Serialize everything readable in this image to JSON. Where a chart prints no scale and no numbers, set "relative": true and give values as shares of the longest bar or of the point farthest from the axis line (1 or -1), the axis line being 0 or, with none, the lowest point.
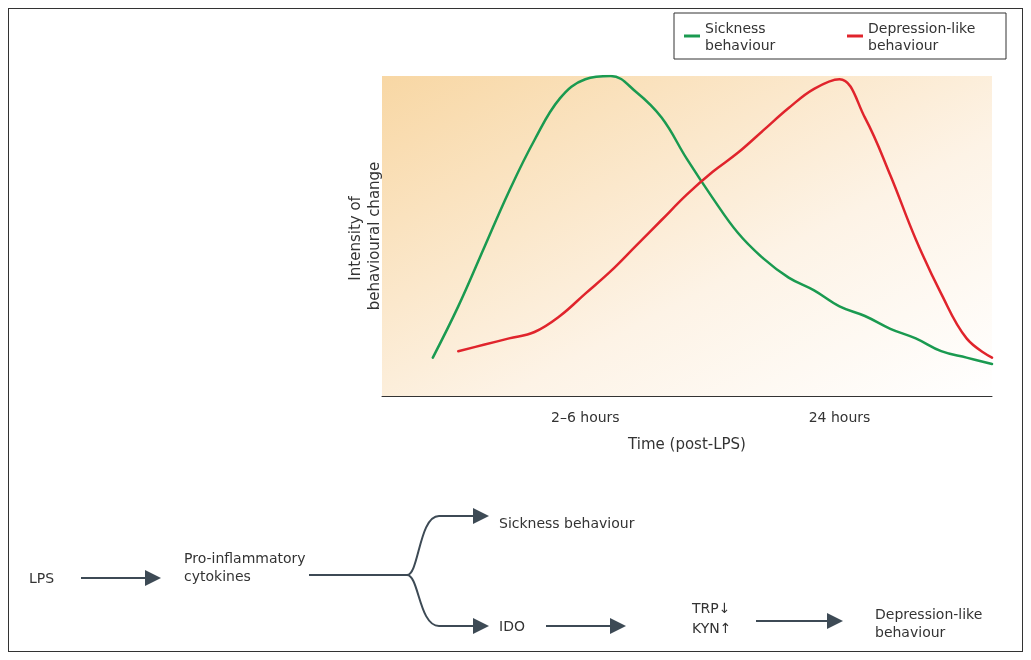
{
  "chart_data": {
    "type": "line",
    "relative": true,
    "ylabel": "Intensity of behavioural change",
    "xlabel": "Time (post-LPS)",
    "categories": [
      null,
      null,
      null,
      null,
      null,
      null,
      null,
      null,
      "2–6 hours",
      null,
      null,
      null,
      null,
      null,
      null,
      null,
      null,
      null,
      "24 hours",
      null,
      null,
      null,
      null,
      null,
      null
    ],
    "series": [
      {
        "name": "Sickness behaviour",
        "color": "#1a9a50",
        "values": [
          null,
          null,
          0.12,
          0.28,
          0.46,
          0.64,
          0.8,
          0.93,
          0.99,
          1.0,
          0.95,
          0.87,
          0.74,
          0.62,
          0.51,
          0.43,
          0.37,
          0.33,
          0.28,
          0.25,
          0.21,
          0.18,
          0.14,
          0.12,
          0.1
        ]
      },
      {
        "name": "Depression-like behaviour",
        "color": "#e0242c",
        "values": [
          null,
          null,
          null,
          0.14,
          0.16,
          0.18,
          0.2,
          0.25,
          0.32,
          0.39,
          0.47,
          0.55,
          0.63,
          0.7,
          0.76,
          0.83,
          0.9,
          0.96,
          0.99,
          0.87,
          0.69,
          0.49,
          0.32,
          0.18,
          0.12
        ]
      }
    ],
    "legend": "top right",
    "grid": false,
    "marker": "none",
    "line_style": "solid",
    "annotations": [
      "LPS",
      "Pro-inflammatory cytokines",
      "Sickness behaviour",
      "IDO",
      "TRP↓",
      "KYN↑",
      "Depression-like behaviour"
    ]
  }
}
